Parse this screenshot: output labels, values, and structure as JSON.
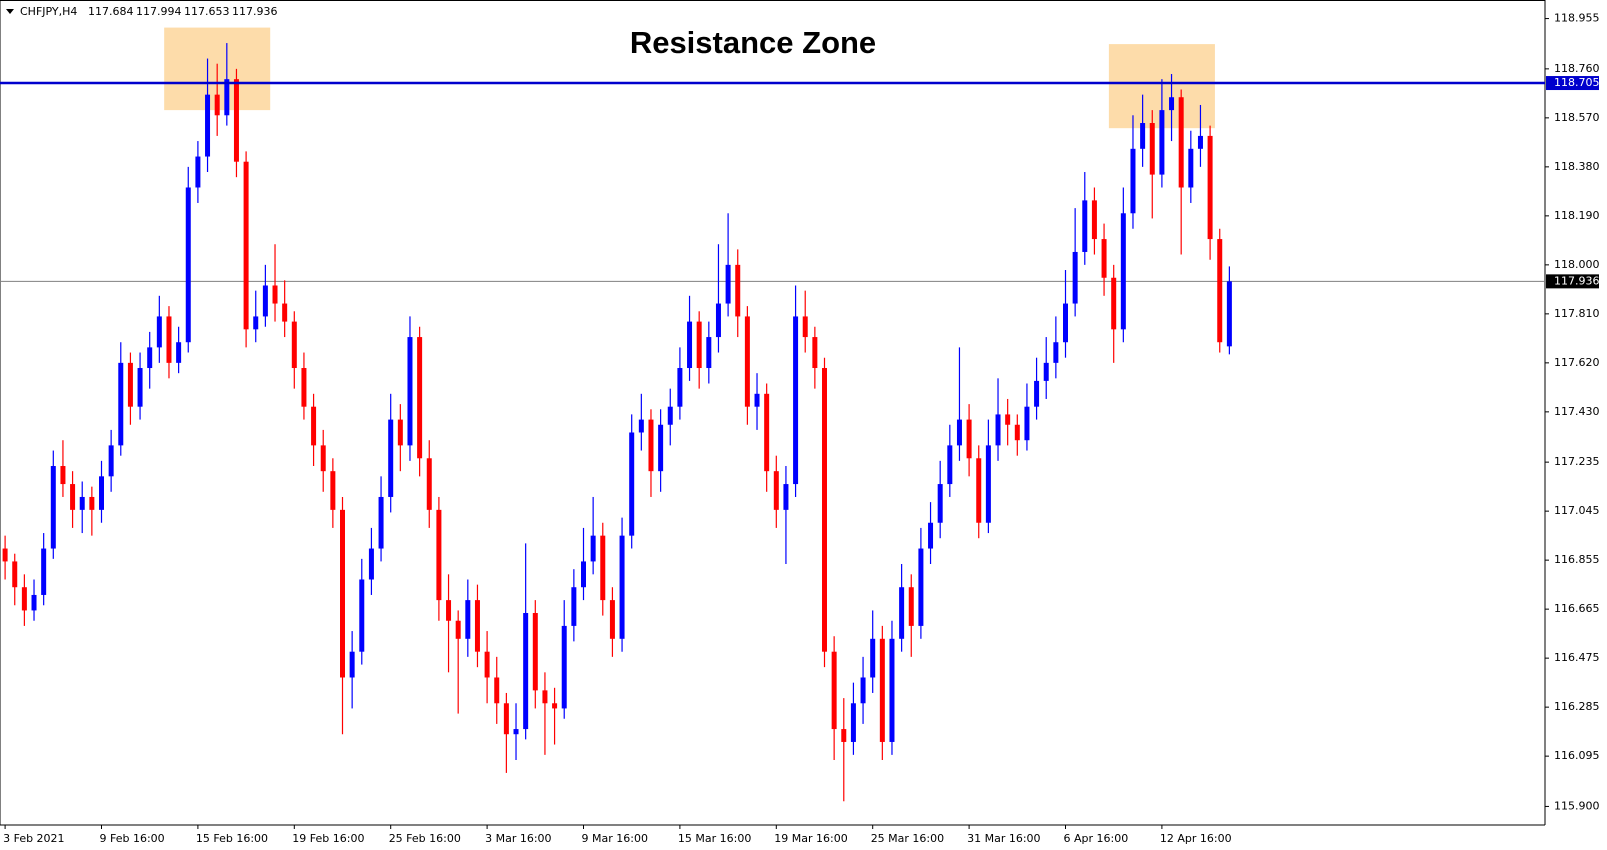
{
  "chart_data": {
    "type": "candlestick",
    "title": "Resistance Zone",
    "symbol": "CHFJPY,H4",
    "up_color": "#0000ff",
    "down_color": "#ff0000",
    "bid_line_color": "#808080",
    "categories": [
      "3 Feb 2021",
      null,
      null,
      null,
      null,
      null,
      null,
      null,
      null,
      null,
      "9 Feb 16:00",
      null,
      null,
      null,
      null,
      null,
      null,
      null,
      null,
      null,
      "15 Feb 16:00",
      null,
      null,
      null,
      null,
      null,
      null,
      null,
      null,
      null,
      "19 Feb 16:00",
      null,
      null,
      null,
      null,
      null,
      null,
      null,
      null,
      null,
      "25 Feb 16:00",
      null,
      null,
      null,
      null,
      null,
      null,
      null,
      null,
      null,
      "3 Mar 16:00",
      null,
      null,
      null,
      null,
      null,
      null,
      null,
      null,
      null,
      "9 Mar 16:00",
      null,
      null,
      null,
      null,
      null,
      null,
      null,
      null,
      null,
      "15 Mar 16:00",
      null,
      null,
      null,
      null,
      null,
      null,
      null,
      null,
      null,
      "19 Mar 16:00",
      null,
      null,
      null,
      null,
      null,
      null,
      null,
      null,
      null,
      "25 Mar 16:00",
      null,
      null,
      null,
      null,
      null,
      null,
      null,
      null,
      null,
      "31 Mar 16:00",
      null,
      null,
      null,
      null,
      null,
      null,
      null,
      null,
      null,
      "6 Apr 16:00",
      null,
      null,
      null,
      null,
      null,
      null,
      null,
      null,
      null,
      "12 Apr 16:00",
      null,
      null,
      null,
      null,
      null,
      null,
      null
    ],
    "ohlc": [
      [
        116.9,
        116.95,
        116.78,
        116.85
      ],
      [
        116.85,
        116.88,
        116.68,
        116.75
      ],
      [
        116.75,
        116.8,
        116.6,
        116.66
      ],
      [
        116.66,
        116.78,
        116.62,
        116.72
      ],
      [
        116.72,
        116.96,
        116.68,
        116.9
      ],
      [
        116.9,
        117.28,
        116.86,
        117.22
      ],
      [
        117.22,
        117.32,
        117.1,
        117.15
      ],
      [
        117.15,
        117.2,
        116.98,
        117.05
      ],
      [
        117.05,
        117.16,
        116.96,
        117.1
      ],
      [
        117.1,
        117.14,
        116.95,
        117.05
      ],
      [
        117.05,
        117.24,
        117.0,
        117.18
      ],
      [
        117.18,
        117.36,
        117.12,
        117.3
      ],
      [
        117.3,
        117.7,
        117.26,
        117.62
      ],
      [
        117.62,
        117.66,
        117.38,
        117.45
      ],
      [
        117.45,
        117.66,
        117.4,
        117.6
      ],
      [
        117.6,
        117.74,
        117.52,
        117.68
      ],
      [
        117.68,
        117.88,
        117.62,
        117.8
      ],
      [
        117.8,
        117.84,
        117.56,
        117.62
      ],
      [
        117.62,
        117.76,
        117.58,
        117.7
      ],
      [
        117.7,
        118.38,
        117.66,
        118.3
      ],
      [
        118.3,
        118.48,
        118.24,
        118.42
      ],
      [
        118.42,
        118.8,
        118.36,
        118.66
      ],
      [
        118.66,
        118.78,
        118.5,
        118.58
      ],
      [
        118.58,
        118.86,
        118.54,
        118.72
      ],
      [
        118.72,
        118.76,
        118.34,
        118.4
      ],
      [
        118.4,
        118.44,
        117.68,
        117.75
      ],
      [
        117.75,
        117.9,
        117.7,
        117.8
      ],
      [
        117.8,
        118.0,
        117.76,
        117.92
      ],
      [
        117.92,
        118.08,
        117.78,
        117.85
      ],
      [
        117.85,
        117.94,
        117.72,
        117.78
      ],
      [
        117.78,
        117.82,
        117.52,
        117.6
      ],
      [
        117.6,
        117.66,
        117.4,
        117.45
      ],
      [
        117.45,
        117.5,
        117.22,
        117.3
      ],
      [
        117.3,
        117.36,
        117.12,
        117.2
      ],
      [
        117.2,
        117.25,
        116.98,
        117.05
      ],
      [
        117.05,
        117.1,
        116.18,
        116.4
      ],
      [
        116.4,
        116.58,
        116.28,
        116.5
      ],
      [
        116.5,
        116.86,
        116.45,
        116.78
      ],
      [
        116.78,
        116.98,
        116.72,
        116.9
      ],
      [
        116.9,
        117.18,
        116.85,
        117.1
      ],
      [
        117.1,
        117.5,
        117.04,
        117.4
      ],
      [
        117.4,
        117.46,
        117.2,
        117.3
      ],
      [
        117.3,
        117.8,
        117.24,
        117.72
      ],
      [
        117.72,
        117.76,
        117.18,
        117.25
      ],
      [
        117.25,
        117.32,
        116.98,
        117.05
      ],
      [
        117.05,
        117.1,
        116.62,
        116.7
      ],
      [
        116.7,
        116.8,
        116.42,
        116.62
      ],
      [
        116.62,
        116.66,
        116.26,
        116.55
      ],
      [
        116.55,
        116.78,
        116.48,
        116.7
      ],
      [
        116.7,
        116.76,
        116.44,
        116.5
      ],
      [
        116.5,
        116.58,
        116.3,
        116.4
      ],
      [
        116.4,
        116.48,
        116.22,
        116.3
      ],
      [
        116.3,
        116.34,
        116.03,
        116.18
      ],
      [
        116.18,
        116.3,
        116.08,
        116.2
      ],
      [
        116.2,
        116.92,
        116.16,
        116.65
      ],
      [
        116.65,
        116.7,
        116.28,
        116.35
      ],
      [
        116.35,
        116.42,
        116.1,
        116.3
      ],
      [
        116.3,
        116.36,
        116.14,
        116.28
      ],
      [
        116.28,
        116.7,
        116.24,
        116.6
      ],
      [
        116.6,
        116.82,
        116.54,
        116.75
      ],
      [
        116.75,
        116.98,
        116.7,
        116.85
      ],
      [
        116.85,
        117.1,
        116.8,
        116.95
      ],
      [
        116.95,
        117.0,
        116.64,
        116.7
      ],
      [
        116.7,
        116.75,
        116.48,
        116.55
      ],
      [
        116.55,
        117.02,
        116.5,
        116.95
      ],
      [
        116.95,
        117.42,
        116.9,
        117.35
      ],
      [
        117.35,
        117.5,
        117.28,
        117.4
      ],
      [
        117.4,
        117.44,
        117.1,
        117.2
      ],
      [
        117.2,
        117.44,
        117.12,
        117.38
      ],
      [
        117.38,
        117.52,
        117.3,
        117.45
      ],
      [
        117.45,
        117.68,
        117.4,
        117.6
      ],
      [
        117.6,
        117.88,
        117.55,
        117.78
      ],
      [
        117.78,
        117.82,
        117.52,
        117.6
      ],
      [
        117.6,
        117.78,
        117.54,
        117.72
      ],
      [
        117.72,
        118.08,
        117.66,
        117.85
      ],
      [
        117.85,
        118.2,
        117.8,
        118.0
      ],
      [
        118.0,
        118.06,
        117.72,
        117.8
      ],
      [
        117.8,
        117.84,
        117.38,
        117.45
      ],
      [
        117.45,
        117.58,
        117.36,
        117.5
      ],
      [
        117.5,
        117.54,
        117.12,
        117.2
      ],
      [
        117.2,
        117.26,
        116.98,
        117.05
      ],
      [
        117.05,
        117.22,
        116.84,
        117.15
      ],
      [
        117.15,
        117.92,
        117.1,
        117.8
      ],
      [
        117.8,
        117.9,
        117.66,
        117.72
      ],
      [
        117.72,
        117.76,
        117.52,
        117.6
      ],
      [
        117.6,
        117.64,
        116.44,
        116.5
      ],
      [
        116.5,
        116.56,
        116.08,
        116.2
      ],
      [
        116.2,
        116.32,
        115.92,
        116.15
      ],
      [
        116.15,
        116.38,
        116.1,
        116.3
      ],
      [
        116.3,
        116.48,
        116.22,
        116.4
      ],
      [
        116.4,
        116.66,
        116.34,
        116.55
      ],
      [
        116.55,
        116.6,
        116.08,
        116.15
      ],
      [
        116.15,
        116.62,
        116.1,
        116.55
      ],
      [
        116.55,
        116.84,
        116.5,
        116.75
      ],
      [
        116.75,
        116.8,
        116.48,
        116.6
      ],
      [
        116.6,
        116.98,
        116.55,
        116.9
      ],
      [
        116.9,
        117.08,
        116.84,
        117.0
      ],
      [
        117.0,
        117.24,
        116.94,
        117.15
      ],
      [
        117.15,
        117.38,
        117.1,
        117.3
      ],
      [
        117.3,
        117.68,
        117.24,
        117.4
      ],
      [
        117.4,
        117.46,
        117.18,
        117.25
      ],
      [
        117.25,
        117.3,
        116.94,
        117.0
      ],
      [
        117.0,
        117.4,
        116.96,
        117.3
      ],
      [
        117.3,
        117.56,
        117.24,
        117.42
      ],
      [
        117.42,
        117.48,
        117.3,
        117.38
      ],
      [
        117.38,
        117.42,
        117.26,
        117.32
      ],
      [
        117.32,
        117.54,
        117.28,
        117.45
      ],
      [
        117.45,
        117.64,
        117.4,
        117.55
      ],
      [
        117.55,
        117.72,
        117.48,
        117.62
      ],
      [
        117.62,
        117.8,
        117.56,
        117.7
      ],
      [
        117.7,
        117.98,
        117.64,
        117.85
      ],
      [
        117.85,
        118.22,
        117.8,
        118.05
      ],
      [
        118.05,
        118.36,
        118.0,
        118.25
      ],
      [
        118.25,
        118.3,
        118.04,
        118.1
      ],
      [
        118.1,
        118.16,
        117.88,
        117.95
      ],
      [
        117.95,
        118.0,
        117.62,
        117.75
      ],
      [
        117.75,
        118.3,
        117.7,
        118.2
      ],
      [
        118.2,
        118.58,
        118.14,
        118.45
      ],
      [
        118.45,
        118.66,
        118.38,
        118.55
      ],
      [
        118.55,
        118.6,
        118.18,
        118.35
      ],
      [
        118.35,
        118.72,
        118.3,
        118.6
      ],
      [
        118.6,
        118.74,
        118.48,
        118.65
      ],
      [
        118.65,
        118.68,
        118.04,
        118.3
      ],
      [
        118.3,
        118.52,
        118.24,
        118.45
      ],
      [
        118.45,
        118.62,
        118.38,
        118.5
      ],
      [
        118.5,
        118.54,
        118.02,
        118.1
      ],
      [
        118.1,
        118.14,
        117.66,
        117.7
      ],
      [
        117.684,
        117.994,
        117.653,
        117.936
      ]
    ],
    "hlines": [
      {
        "value": 118.705,
        "color": "#0000cd"
      }
    ],
    "zones": [
      {
        "start": 17,
        "end": 27,
        "high": 118.92,
        "low": 118.6,
        "color": "#fddcaa"
      },
      {
        "start": 115,
        "end": 125,
        "high": 118.856,
        "low": 118.53,
        "color": "#fddcaa"
      }
    ],
    "ylim": [
      115.828,
      119.027
    ],
    "yticks": [
      118.955,
      {
        "value": 118.76,
        "label": "118.760"
      },
      {
        "value": 118.57,
        "label": "118.570"
      },
      {
        "value": 118.38,
        "label": "118.380"
      },
      {
        "value": 118.19,
        "label": "118.190"
      },
      {
        "value": 118,
        "label": "118.000"
      },
      {
        "value": 117.81,
        "label": "117.810"
      },
      {
        "value": 117.62,
        "label": "117.620"
      },
      {
        "value": 117.43,
        "label": "117.430"
      },
      117.235,
      117.045,
      116.855,
      116.665,
      116.475,
      116.285,
      116.095,
      {
        "value": 115.9,
        "label": "115.900"
      }
    ]
  }
}
